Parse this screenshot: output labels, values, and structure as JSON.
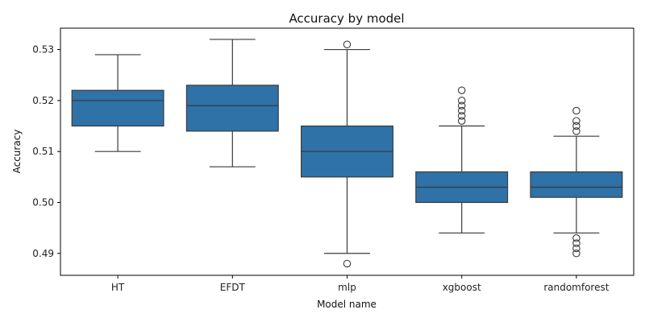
{
  "chart_data": {
    "type": "box",
    "title": "Accuracy by model",
    "xlabel": "Model name",
    "ylabel": "Accuracy",
    "ylim": [
      0.4857,
      0.5342
    ],
    "yticks": [
      0.49,
      0.5,
      0.51,
      0.52,
      0.53
    ],
    "ytick_labels": [
      "0.49",
      "0.50",
      "0.51",
      "0.52",
      "0.53"
    ],
    "grid": false,
    "box_color": "#2f72a8",
    "line_color": "#3a3a3a",
    "categories": [
      "HT",
      "EFDT",
      "mlp",
      "xgboost",
      "randomforest"
    ],
    "boxes": [
      {
        "name": "HT",
        "whisker_low": 0.51,
        "q1": 0.515,
        "median": 0.52,
        "q3": 0.522,
        "whisker_high": 0.529,
        "outliers": []
      },
      {
        "name": "EFDT",
        "whisker_low": 0.507,
        "q1": 0.514,
        "median": 0.519,
        "q3": 0.523,
        "whisker_high": 0.532,
        "outliers": []
      },
      {
        "name": "mlp",
        "whisker_low": 0.49,
        "q1": 0.505,
        "median": 0.51,
        "q3": 0.515,
        "whisker_high": 0.53,
        "outliers": [
          0.531,
          0.488
        ]
      },
      {
        "name": "xgboost",
        "whisker_low": 0.494,
        "q1": 0.5,
        "median": 0.503,
        "q3": 0.506,
        "whisker_high": 0.515,
        "outliers": [
          0.516,
          0.517,
          0.518,
          0.519,
          0.52,
          0.522
        ]
      },
      {
        "name": "randomforest",
        "whisker_low": 0.494,
        "q1": 0.501,
        "median": 0.503,
        "q3": 0.506,
        "whisker_high": 0.513,
        "outliers": [
          0.514,
          0.515,
          0.516,
          0.518,
          0.493,
          0.492,
          0.491,
          0.49
        ]
      }
    ]
  }
}
